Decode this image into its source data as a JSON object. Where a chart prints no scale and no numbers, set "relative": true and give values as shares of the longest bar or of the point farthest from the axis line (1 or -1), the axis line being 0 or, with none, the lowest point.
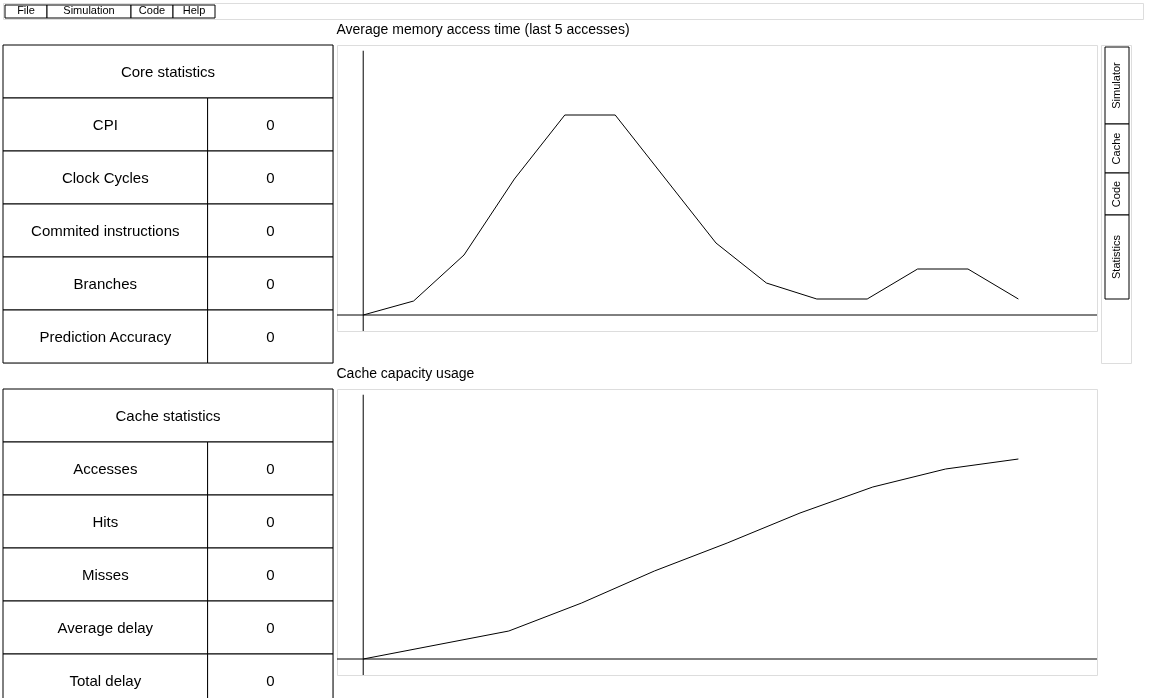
{
  "chart_data": [
    {
      "type": "other",
      "annotations": [
        "File",
        "Simulation",
        "Code",
        "Help"
      ]
    },
    {
      "type": "other",
      "title": "Core statistics",
      "categories": [
        "CPI",
        "Clock Cycles",
        "Commited instructions",
        "Branches",
        "Prediction Accuracy"
      ],
      "values": [
        0,
        0,
        0,
        0,
        0
      ],
      "data_labels": true
    },
    {
      "type": "line",
      "title": "Average memory access time (last 5 accesses)",
      "relative": true,
      "categories": [
        null,
        null,
        null,
        null,
        null,
        null,
        null,
        null,
        null,
        null,
        null,
        null,
        null,
        null
      ],
      "series": [
        {
          "color": "#000000",
          "values": [
            0,
            0.07,
            0.3,
            0.68,
            1,
            1,
            0.68,
            0.36,
            0.16,
            0.08,
            0.08,
            0.23,
            0.23,
            0.08
          ]
        }
      ],
      "marker": "none"
    },
    {
      "type": "other",
      "annotations": [
        "Simulator",
        "Cache",
        "Code",
        "Statistics"
      ]
    },
    {
      "type": "other",
      "title": "Cache statistics",
      "categories": [
        "Accesses",
        "Hits",
        "Misses",
        "Average delay",
        "Total delay"
      ],
      "values": [
        0,
        0,
        0,
        0,
        0
      ],
      "data_labels": true
    },
    {
      "type": "line",
      "title": "Cache capacity usage",
      "relative": true,
      "categories": [
        null,
        null,
        null,
        null,
        null,
        null,
        null,
        null,
        null,
        null
      ],
      "series": [
        {
          "color": "#000000",
          "values": [
            0,
            0.07,
            0.14,
            0.28,
            0.44,
            0.58,
            0.73,
            0.86,
            0.95,
            1
          ]
        }
      ],
      "marker": "none"
    }
  ]
}
